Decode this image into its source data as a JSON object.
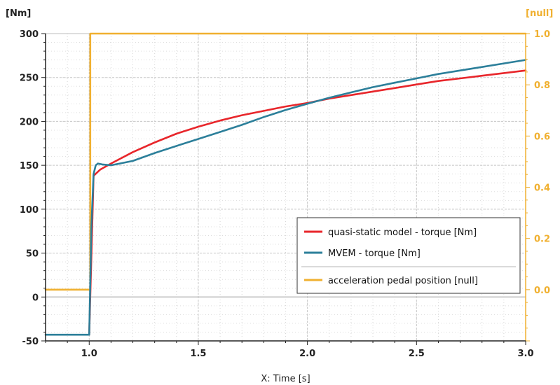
{
  "chart_data": {
    "type": "line",
    "xlabel": "X: Time [s]",
    "left_unit": "[Nm]",
    "right_unit": "[null]",
    "xlim": [
      0.8,
      3.0
    ],
    "ylim_left": [
      -50,
      300
    ],
    "ylim_right": [
      -0.2,
      1.0
    ],
    "x_ticks": [
      "1.0",
      "1.5",
      "2.0",
      "2.5",
      "3.0"
    ],
    "y_left_ticks": [
      "300",
      "250",
      "200",
      "150",
      "100",
      "50",
      "0",
      "-50"
    ],
    "y_right_ticks": [
      "1.0",
      "0.8",
      "0.6",
      "0.4",
      "0.2",
      "0.0"
    ],
    "grid": true,
    "legend_position": "bottom-right",
    "colors": {
      "right_axis": "#f0b030",
      "zero_line": "#bfbfbf"
    },
    "series": [
      {
        "name": "quasi-static model - torque [Nm]",
        "axis": "left",
        "color": "#e8262b",
        "x": [
          1.0,
          1.02,
          1.05,
          1.1,
          1.2,
          1.3,
          1.4,
          1.5,
          1.6,
          1.7,
          1.8,
          1.9,
          2.0,
          2.1,
          2.2,
          2.3,
          2.4,
          2.5,
          2.6,
          2.7,
          2.8,
          2.9,
          3.0
        ],
        "y": [
          -43,
          138,
          145,
          152,
          165,
          176,
          186,
          194,
          201,
          207,
          212,
          217,
          221,
          226,
          230,
          234,
          238,
          242,
          246,
          249,
          252,
          255,
          258
        ]
      },
      {
        "name": "MVEM - torque [Nm]",
        "axis": "left",
        "color": "#2c7f9a",
        "x": [
          0.8,
          1.0,
          1.01,
          1.02,
          1.03,
          1.04,
          1.06,
          1.1,
          1.2,
          1.3,
          1.4,
          1.5,
          1.6,
          1.7,
          1.8,
          1.9,
          2.0,
          2.1,
          2.2,
          2.3,
          2.4,
          2.5,
          2.6,
          2.7,
          2.8,
          2.9,
          3.0
        ],
        "y": [
          -43,
          -43,
          80,
          140,
          150,
          152,
          151,
          150,
          155,
          164,
          172,
          180,
          188,
          196,
          205,
          213,
          220,
          227,
          233,
          239,
          244,
          249,
          254,
          258,
          262,
          266,
          270
        ]
      },
      {
        "name": "acceleration pedal position [null]",
        "axis": "right",
        "color": "#f0b030",
        "x": [
          0.8,
          1.005,
          1.005,
          3.0
        ],
        "y": [
          0.0,
          0.0,
          1.0,
          1.0
        ]
      }
    ]
  }
}
